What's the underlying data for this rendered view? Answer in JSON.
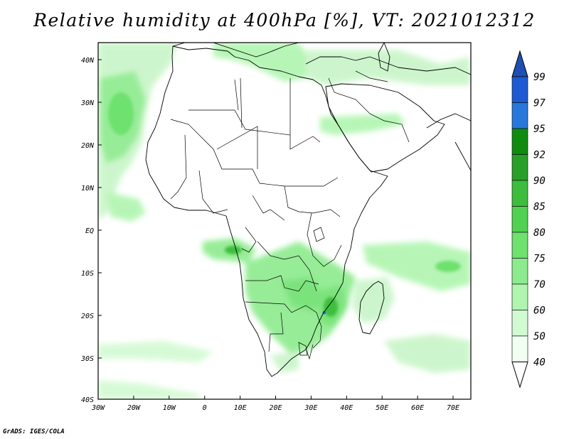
{
  "title": "Relative humidity at 400hPa [%], VT: 2021012312",
  "credit": "GrADS: IGES/COLA",
  "map": {
    "lon_range": [
      -30,
      75
    ],
    "lat_range": [
      -40,
      45
    ],
    "x_ticks": [
      "30W",
      "20W",
      "10W",
      "0",
      "10E",
      "20E",
      "30E",
      "40E",
      "50E",
      "60E",
      "70E"
    ],
    "y_ticks": [
      "40N",
      "30N",
      "20N",
      "10N",
      "EQ",
      "10S",
      "20S",
      "30S",
      "40S"
    ]
  },
  "colorbar": {
    "levels": [
      "99",
      "97",
      "95",
      "92",
      "90",
      "85",
      "80",
      "75",
      "70",
      "60",
      "50",
      "40"
    ],
    "colors": [
      "#1e5ad2",
      "#2878dc",
      "#4696e6",
      "#0f8c0f",
      "#28a028",
      "#3cbe3c",
      "#50d250",
      "#6ee16e",
      "#8ceb8c",
      "#aff5af",
      "#d2fad2",
      "#f0fff0"
    ],
    "top_color": "#1e50b4",
    "bottom_color": "#ffffff"
  }
}
